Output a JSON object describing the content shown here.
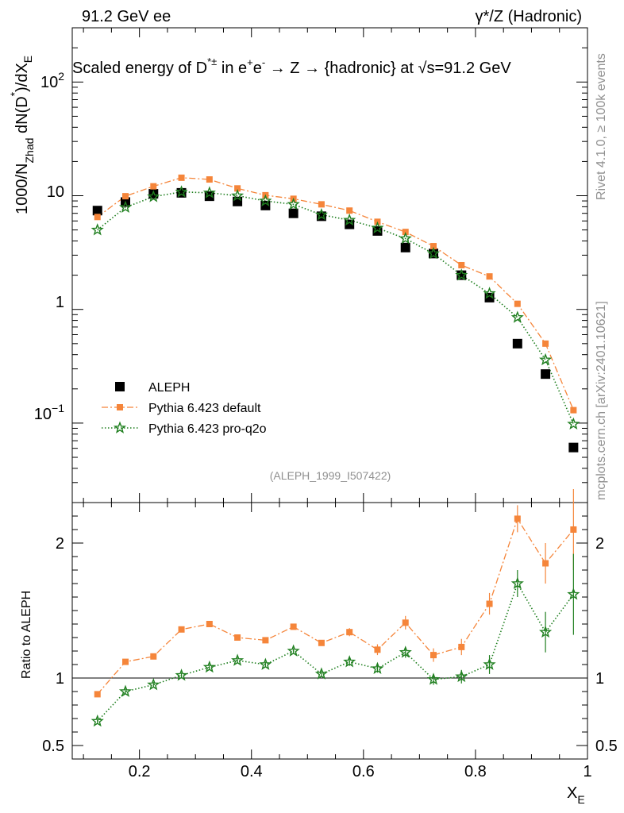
{
  "header": {
    "left": "91.2 GeV ee",
    "right": "γ*/Z (Hadronic)"
  },
  "side": {
    "rivet": "Rivet 4.1.0, ≥ 100k events",
    "mcplots": "mcplots.cern.ch [arXiv:2401.10621]"
  },
  "chart_data": {
    "type": "scatter",
    "title": "Scaled energy of D*± in e+e- → Z → {hadronic} at √s=91.2 GeV",
    "title_parts": {
      "t1": "Scaled energy of D",
      "sup1": "*±",
      "t2": " in e",
      "sup2": "+",
      "t3": "e",
      "sup3": "-",
      "t4": " →  Z → {hadronic} at ",
      "sqrt": "√",
      "t5": "s=91.2 GeV"
    },
    "ylabel": "1000/N_Zhad dN(D*)/dX_E",
    "ylabel_parts": {
      "a": "1000/N",
      "sub_a": "Zhad",
      "b": " dN(D",
      "sup_b": "*",
      "c": ")/dX",
      "sub_c": "E"
    },
    "xlabel": "X",
    "xlabel_sub": "E",
    "ratio_ylabel": "Ratio to ALEPH",
    "analysis_tag": "(ALEPH_1999_I507422)",
    "x_range": [
      0.08,
      1.0
    ],
    "y_range_log": [
      0.02,
      300
    ],
    "ratio_range": [
      0.4,
      2.3
    ],
    "x_ticks": [
      0.2,
      0.4,
      0.6,
      0.8,
      1
    ],
    "x_tick_labels": [
      "0.2",
      "0.4",
      "0.6",
      "0.8",
      "1"
    ],
    "y_ticks": [
      0.1,
      1,
      10,
      100
    ],
    "y_tick_labels": {
      "t01_base": "10",
      "t01_exp": "−1",
      "t1": "1",
      "t10": "10",
      "t100_base": "10",
      "t100_exp": "2"
    },
    "ratio_ticks": [
      0.5,
      1,
      2
    ],
    "ratio_tick_labels": [
      "0.5",
      "1",
      "2"
    ],
    "x": [
      0.125,
      0.175,
      0.225,
      0.275,
      0.325,
      0.375,
      0.425,
      0.475,
      0.525,
      0.575,
      0.625,
      0.675,
      0.725,
      0.775,
      0.825,
      0.875,
      0.925,
      0.975
    ],
    "series": [
      {
        "name": "ALEPH",
        "color": "#000000",
        "marker": "square",
        "values": [
          7.4,
          8.8,
          10.4,
          10.6,
          9.9,
          8.9,
          8.2,
          7.0,
          6.6,
          5.6,
          4.9,
          3.5,
          3.1,
          2.0,
          1.27,
          0.5,
          0.27,
          0.061
        ]
      },
      {
        "name": "Pythia 6.423 default",
        "color": "#f5853a",
        "marker": "square-small",
        "line": "dashdot",
        "values": [
          6.5,
          9.9,
          12.1,
          14.4,
          13.9,
          11.6,
          10.1,
          9.4,
          8.4,
          7.4,
          5.9,
          4.8,
          3.6,
          2.45,
          1.95,
          1.12,
          0.5,
          0.13
        ],
        "ratio": [
          0.88,
          1.12,
          1.16,
          1.36,
          1.4,
          1.3,
          1.28,
          1.38,
          1.26,
          1.34,
          1.21,
          1.41,
          1.17,
          1.23,
          1.55,
          2.18,
          1.85,
          2.1
        ],
        "ratio_err": [
          0.02,
          0.02,
          0.02,
          0.02,
          0.02,
          0.02,
          0.02,
          0.02,
          0.02,
          0.03,
          0.04,
          0.05,
          0.05,
          0.06,
          0.08,
          0.1,
          0.15,
          0.3
        ]
      },
      {
        "name": "Pythia 6.423 pro-q2o",
        "color": "#1f7f1f",
        "marker": "star",
        "line": "dotted",
        "values": [
          5.0,
          7.9,
          9.8,
          10.8,
          10.6,
          10.0,
          9.0,
          8.4,
          6.8,
          6.1,
          5.2,
          4.2,
          3.1,
          2.0,
          1.38,
          0.85,
          0.36,
          0.098
        ],
        "ratio": [
          0.68,
          0.9,
          0.95,
          1.02,
          1.08,
          1.13,
          1.1,
          1.2,
          1.03,
          1.12,
          1.07,
          1.19,
          0.99,
          1.01,
          1.1,
          1.7,
          1.34,
          1.62
        ],
        "ratio_err": [
          0.02,
          0.02,
          0.02,
          0.02,
          0.02,
          0.02,
          0.02,
          0.02,
          0.02,
          0.03,
          0.03,
          0.04,
          0.04,
          0.05,
          0.07,
          0.1,
          0.15,
          0.3
        ]
      }
    ],
    "legend": [
      "ALEPH",
      "Pythia 6.423 default",
      "Pythia 6.423 pro-q2o"
    ],
    "legend_position": "lower-left"
  }
}
